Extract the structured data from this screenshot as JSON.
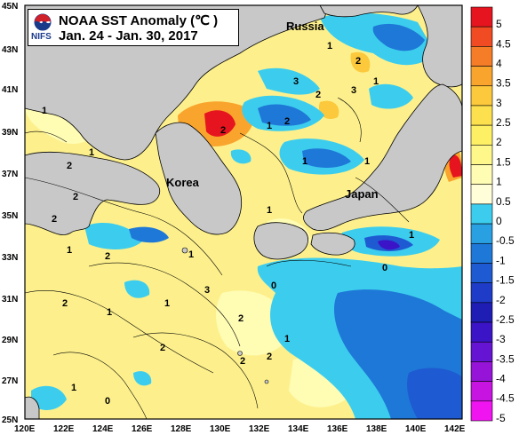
{
  "title": {
    "main": "NOAA SST Anomaly (℃ )",
    "dates": "Jan. 24 - Jan. 30, 2017",
    "org": "NIFS"
  },
  "places": {
    "russia": "Russia",
    "korea": "Korea",
    "japan": "Japan"
  },
  "axes": {
    "longitude_labels": [
      "120E",
      "122E",
      "124E",
      "126E",
      "128E",
      "130E",
      "132E",
      "134E",
      "136E",
      "138E",
      "140E",
      "142E"
    ],
    "latitude_labels": [
      "45N",
      "43N",
      "41N",
      "39N",
      "37N",
      "35N",
      "33N",
      "31N",
      "29N",
      "27N",
      "25N"
    ]
  },
  "colorbar": {
    "labels": [
      "5",
      "4.5",
      "4",
      "3.5",
      "3",
      "2.5",
      "2",
      "1.5",
      "1",
      "0.5",
      "0",
      "-0.5",
      "-1",
      "-1.5",
      "-2",
      "-2.5",
      "-3",
      "-3.5",
      "-4",
      "-4.5",
      "-5"
    ],
    "colors": [
      "#e6141e",
      "#f04b23",
      "#f57d28",
      "#f9a52d",
      "#fcc83c",
      "#fde04e",
      "#fef064",
      "#fef88a",
      "#fffcb4",
      "#fffed8",
      "#3ccdee",
      "#28a0e1",
      "#1e78d7",
      "#1e5ad2",
      "#1e3cc8",
      "#1e1eb4",
      "#3c14c8",
      "#6414d2",
      "#9614d7",
      "#c814e1",
      "#f014f0"
    ]
  },
  "contour_labels": [
    "2",
    "1",
    "2",
    "2",
    "1",
    "1",
    "2",
    "2",
    "1",
    "3",
    "2",
    "1",
    "0",
    "1",
    "2",
    "3",
    "2",
    "1",
    "2",
    "1",
    "2",
    "1",
    "3",
    "1",
    "0",
    "1",
    "2",
    "1",
    "2",
    "2",
    "1",
    "0",
    "1",
    "1"
  ],
  "colors": {
    "land": "#c8c8c8",
    "sea_default": "#fdf08c",
    "frame": "#000000"
  }
}
